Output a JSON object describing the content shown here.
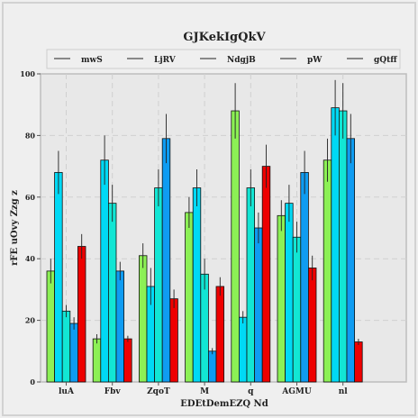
{
  "chart_data": {
    "type": "bar",
    "title": "GJKekIgQkV",
    "xlabel": "EDEtDemEZQ Nd",
    "ylabel": "rFE uOvy Zzg z",
    "categories": [
      "luA",
      "Fbv",
      "ZqoT",
      "M",
      "q",
      "AGMU",
      "nl"
    ],
    "ylim": [
      0,
      100
    ],
    "yticks": [
      0,
      20,
      40,
      60,
      80,
      100
    ],
    "grid": true,
    "legend_position": "top",
    "series": [
      {
        "name": "mwS",
        "color": "#8cf055",
        "values": [
          36,
          14,
          41,
          55,
          88,
          54,
          72
        ],
        "errors": [
          4,
          1.5,
          4,
          5,
          9,
          5,
          7
        ]
      },
      {
        "name": "LjRV",
        "color": "#00d9f5",
        "values": [
          68,
          72,
          31,
          63,
          21,
          58,
          89
        ],
        "errors": [
          7,
          8,
          6,
          6,
          2,
          6,
          9
        ]
      },
      {
        "name": "NdgjB",
        "color": "#12e6d4",
        "values": [
          23,
          58,
          63,
          35,
          63,
          47,
          88
        ],
        "errors": [
          2,
          6,
          6,
          5,
          6,
          5,
          9
        ]
      },
      {
        "name": "pW",
        "color": "#0f9cf2",
        "values": [
          19,
          36,
          79,
          10,
          50,
          68,
          79
        ],
        "errors": [
          2,
          3,
          8,
          1,
          5,
          7,
          8
        ]
      },
      {
        "name": "gQtff",
        "color": "#ee0000",
        "values": [
          44,
          14,
          27,
          31,
          70,
          37,
          13
        ],
        "errors": [
          4,
          1,
          3,
          3,
          7,
          4,
          1
        ]
      }
    ]
  }
}
